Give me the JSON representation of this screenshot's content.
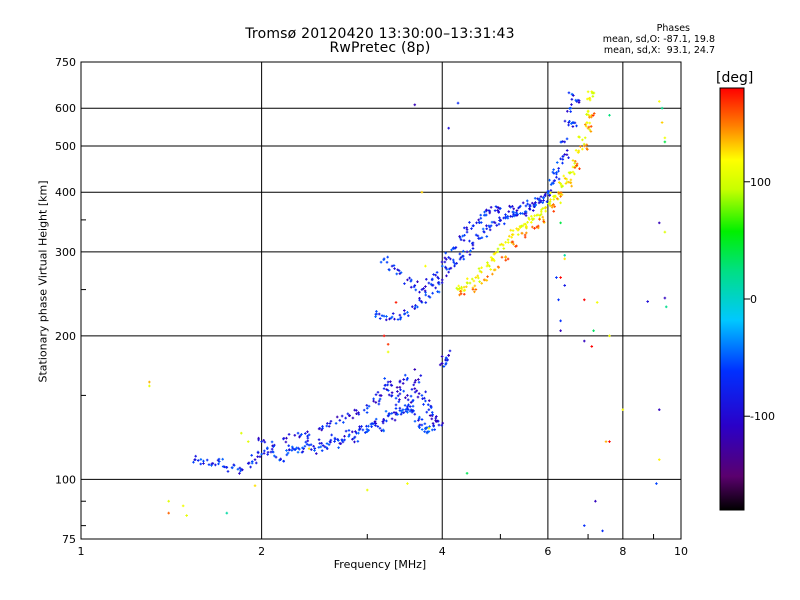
{
  "title": "Tromsø 20120420 13:30:00–13:31:43",
  "subtitle": "RwPretec (8p)",
  "phases": {
    "title": "Phases",
    "o_line": "mean, sd,O: -87.1, 19.8",
    "x_line": "mean, sd,X:  93.1, 24.7"
  },
  "chart_data": {
    "type": "scatter",
    "title": "Tromsø 20120420 13:30:00–13:31:43",
    "subtitle": "RwPretec (8p)",
    "xlabel": "Frequency [MHz]",
    "ylabel": "Stationary phase Virtual Height [km]",
    "x_scale": "log",
    "y_scale": "log",
    "xlim": [
      1,
      10
    ],
    "ylim": [
      75,
      750
    ],
    "x_ticks": [
      1,
      2,
      4,
      6,
      8,
      10
    ],
    "y_ticks": [
      75,
      100,
      200,
      300,
      400,
      500,
      600,
      750
    ],
    "grid": true,
    "colorbar": {
      "label": "[deg]",
      "range": [
        -180,
        180
      ],
      "ticks": [
        100,
        0,
        -100
      ],
      "colormap": "rainbow (black→purple→blue→cyan→green→yellow→orange→red)"
    },
    "series": [
      {
        "trace": "E/F1 O-mode lower echo band",
        "phase_deg": -90,
        "points": [
          [
            1.55,
            110
          ],
          [
            1.6,
            108
          ],
          [
            1.65,
            107
          ],
          [
            1.7,
            109
          ],
          [
            1.75,
            106
          ],
          [
            1.8,
            107
          ],
          [
            1.85,
            105
          ],
          [
            1.9,
            108
          ],
          [
            1.95,
            110
          ],
          [
            2.0,
            113
          ],
          [
            2.05,
            114
          ],
          [
            2.1,
            112
          ],
          [
            2.15,
            110
          ],
          [
            2.2,
            115
          ],
          [
            2.25,
            117
          ],
          [
            2.3,
            114
          ],
          [
            2.35,
            116
          ],
          [
            2.4,
            118
          ],
          [
            2.45,
            115
          ],
          [
            2.5,
            119
          ],
          [
            2.55,
            117
          ],
          [
            2.6,
            120
          ],
          [
            2.65,
            122
          ],
          [
            2.7,
            119
          ],
          [
            2.75,
            121
          ],
          [
            2.8,
            124
          ],
          [
            2.85,
            122
          ],
          [
            2.9,
            125
          ],
          [
            2.95,
            127
          ],
          [
            3.0,
            126
          ],
          [
            3.05,
            129
          ],
          [
            3.1,
            131
          ],
          [
            3.15,
            128
          ],
          [
            3.2,
            133
          ],
          [
            3.25,
            136
          ],
          [
            3.3,
            134
          ],
          [
            3.35,
            138
          ],
          [
            3.4,
            141
          ],
          [
            3.45,
            138
          ],
          [
            3.5,
            142
          ],
          [
            3.55,
            140
          ],
          [
            3.6,
            137
          ],
          [
            3.65,
            133
          ],
          [
            3.7,
            130
          ],
          [
            3.75,
            128
          ],
          [
            3.8,
            126
          ],
          [
            3.85,
            127
          ]
        ]
      },
      {
        "trace": "E/F1 upper scatter band",
        "phase_deg": -100,
        "points": [
          [
            2.0,
            120
          ],
          [
            2.1,
            118
          ],
          [
            2.2,
            122
          ],
          [
            2.3,
            125
          ],
          [
            2.4,
            124
          ],
          [
            2.5,
            128
          ],
          [
            2.6,
            131
          ],
          [
            2.7,
            133
          ],
          [
            2.8,
            136
          ],
          [
            2.9,
            138
          ],
          [
            3.0,
            141
          ],
          [
            3.1,
            145
          ],
          [
            3.15,
            150
          ],
          [
            3.2,
            155
          ],
          [
            3.25,
            160
          ],
          [
            3.3,
            152
          ],
          [
            3.35,
            148
          ],
          [
            3.4,
            156
          ],
          [
            3.45,
            162
          ],
          [
            3.5,
            150
          ],
          [
            3.55,
            145
          ],
          [
            3.6,
            155
          ],
          [
            3.65,
            162
          ],
          [
            3.7,
            150
          ],
          [
            3.75,
            146
          ],
          [
            3.8,
            140
          ],
          [
            3.85,
            136
          ],
          [
            3.9,
            133
          ],
          [
            3.95,
            130
          ],
          [
            4.0,
            175
          ],
          [
            4.05,
            178
          ],
          [
            4.1,
            182
          ]
        ]
      },
      {
        "trace": "F2 O-mode trace",
        "phase_deg": -90,
        "points": [
          [
            3.1,
            222
          ],
          [
            3.2,
            220
          ],
          [
            3.3,
            219
          ],
          [
            3.4,
            221
          ],
          [
            3.5,
            224
          ],
          [
            3.6,
            228
          ],
          [
            3.7,
            235
          ],
          [
            3.8,
            242
          ],
          [
            3.9,
            252
          ],
          [
            4.0,
            262
          ],
          [
            4.1,
            272
          ],
          [
            4.2,
            283
          ],
          [
            4.3,
            292
          ],
          [
            4.4,
            300
          ],
          [
            4.5,
            310
          ],
          [
            4.6,
            320
          ],
          [
            4.7,
            330
          ],
          [
            4.8,
            338
          ],
          [
            4.9,
            345
          ],
          [
            5.0,
            350
          ],
          [
            5.1,
            353
          ],
          [
            5.2,
            356
          ],
          [
            5.3,
            358
          ],
          [
            5.4,
            361
          ],
          [
            5.5,
            364
          ],
          [
            5.6,
            368
          ],
          [
            5.7,
            373
          ],
          [
            5.8,
            380
          ],
          [
            5.9,
            390
          ],
          [
            6.0,
            402
          ],
          [
            6.1,
            418
          ],
          [
            6.2,
            440
          ],
          [
            6.3,
            470
          ],
          [
            6.4,
            510
          ],
          [
            6.5,
            560
          ],
          [
            6.55,
            600
          ],
          [
            6.6,
            640
          ]
        ]
      },
      {
        "trace": "F2 O-mode echo band",
        "phase_deg": -95,
        "points": [
          [
            3.2,
            290
          ],
          [
            3.3,
            280
          ],
          [
            3.4,
            270
          ],
          [
            3.5,
            262
          ],
          [
            3.6,
            255
          ],
          [
            3.7,
            250
          ],
          [
            3.8,
            258
          ],
          [
            3.9,
            268
          ],
          [
            4.0,
            280
          ],
          [
            4.1,
            292
          ],
          [
            4.2,
            305
          ],
          [
            4.3,
            318
          ],
          [
            4.4,
            330
          ],
          [
            4.5,
            340
          ],
          [
            4.6,
            350
          ],
          [
            4.7,
            358
          ],
          [
            4.8,
            362
          ],
          [
            4.9,
            366
          ],
          [
            5.0,
            370
          ],
          [
            5.2,
            372
          ],
          [
            5.4,
            374
          ],
          [
            5.6,
            376
          ],
          [
            5.8,
            385
          ],
          [
            6.0,
            398
          ],
          [
            6.2,
            430
          ],
          [
            6.4,
            480
          ],
          [
            6.6,
            560
          ],
          [
            6.7,
            620
          ]
        ]
      },
      {
        "trace": "F2 X-mode trace",
        "phase_deg": 110,
        "points": [
          [
            4.25,
            250
          ],
          [
            4.35,
            253
          ],
          [
            4.45,
            258
          ],
          [
            4.55,
            265
          ],
          [
            4.65,
            272
          ],
          [
            4.75,
            280
          ],
          [
            4.85,
            290
          ],
          [
            4.95,
            300
          ],
          [
            5.05,
            310
          ],
          [
            5.15,
            318
          ],
          [
            5.25,
            326
          ],
          [
            5.35,
            333
          ],
          [
            5.45,
            340
          ],
          [
            5.55,
            346
          ],
          [
            5.65,
            352
          ],
          [
            5.75,
            358
          ],
          [
            5.85,
            364
          ],
          [
            5.95,
            372
          ],
          [
            6.05,
            382
          ],
          [
            6.15,
            392
          ],
          [
            6.25,
            400
          ],
          [
            6.35,
            412
          ],
          [
            6.45,
            426
          ],
          [
            6.55,
            440
          ],
          [
            6.65,
            460
          ],
          [
            6.75,
            485
          ],
          [
            6.85,
            515
          ],
          [
            6.95,
            550
          ],
          [
            7.0,
            590
          ],
          [
            7.05,
            630
          ],
          [
            7.1,
            650
          ]
        ]
      },
      {
        "trace": "F2 X-mode trace lower band",
        "phase_deg": 150,
        "points": [
          [
            4.3,
            245
          ],
          [
            4.5,
            252
          ],
          [
            4.7,
            262
          ],
          [
            4.9,
            275
          ],
          [
            5.1,
            292
          ],
          [
            5.3,
            308
          ],
          [
            5.5,
            322
          ],
          [
            5.7,
            336
          ],
          [
            5.9,
            350
          ],
          [
            6.1,
            372
          ],
          [
            6.3,
            392
          ],
          [
            6.5,
            420
          ],
          [
            6.7,
            455
          ],
          [
            6.9,
            500
          ],
          [
            7.0,
            545
          ],
          [
            7.1,
            580
          ]
        ]
      },
      {
        "trace": "scattered noise (cool)",
        "phase_deg": -100,
        "points": [
          [
            3.6,
            610
          ],
          [
            4.1,
            545
          ],
          [
            4.25,
            615
          ],
          [
            6.2,
            265
          ],
          [
            6.25,
            238
          ],
          [
            6.3,
            205
          ],
          [
            6.3,
            215
          ],
          [
            6.9,
            195
          ],
          [
            7.2,
            90
          ],
          [
            8.8,
            236
          ],
          [
            9.2,
            345
          ],
          [
            9.2,
            140
          ],
          [
            9.4,
            240
          ],
          [
            9.1,
            98
          ],
          [
            6.4,
            255
          ],
          [
            3.4,
            160
          ],
          [
            3.6,
            170
          ],
          [
            7.4,
            78
          ],
          [
            6.9,
            80
          ]
        ]
      },
      {
        "trace": "scattered noise (warm)",
        "phase_deg": 120,
        "points": [
          [
            1.3,
            160
          ],
          [
            1.4,
            90
          ],
          [
            1.48,
            88
          ],
          [
            1.85,
            125
          ],
          [
            1.9,
            120
          ],
          [
            1.95,
            97
          ],
          [
            2.4,
            116
          ],
          [
            3.0,
            95
          ],
          [
            3.25,
            185
          ],
          [
            3.5,
            98
          ],
          [
            3.7,
            400
          ],
          [
            3.75,
            280
          ],
          [
            3.8,
            128
          ],
          [
            6.3,
            380
          ],
          [
            6.4,
            290
          ],
          [
            7.25,
            235
          ],
          [
            7.5,
            120
          ],
          [
            7.6,
            200
          ],
          [
            8.0,
            140
          ],
          [
            9.2,
            620
          ],
          [
            9.3,
            560
          ],
          [
            9.4,
            520
          ],
          [
            9.4,
            330
          ],
          [
            9.2,
            110
          ],
          [
            1.5,
            84
          ],
          [
            1.3,
            157
          ]
        ]
      },
      {
        "trace": "scattered noise (hot)",
        "phase_deg": 175,
        "points": [
          [
            1.4,
            85
          ],
          [
            3.2,
            200
          ],
          [
            3.25,
            192
          ],
          [
            6.3,
            265
          ],
          [
            6.9,
            238
          ],
          [
            7.1,
            190
          ],
          [
            7.6,
            120
          ],
          [
            3.35,
            235
          ]
        ]
      },
      {
        "trace": "scattered noise (green)",
        "phase_deg": 10,
        "points": [
          [
            1.75,
            85
          ],
          [
            4.4,
            103
          ],
          [
            6.3,
            345
          ],
          [
            7.15,
            205
          ],
          [
            6.4,
            295
          ],
          [
            9.3,
            600
          ],
          [
            9.4,
            510
          ],
          [
            9.45,
            230
          ],
          [
            7.6,
            580
          ]
        ]
      }
    ]
  }
}
